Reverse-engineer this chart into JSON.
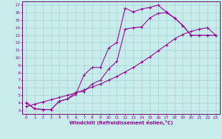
{
  "xlabel": "Windchill (Refroidissement éolien,°C)",
  "bg_color": "#c8ecec",
  "grid_color": "#aad4d4",
  "line_color": "#990099",
  "spine_color": "#660066",
  "xlim": [
    -0.5,
    23.5
  ],
  "ylim": [
    2.5,
    17.5
  ],
  "xticks": [
    0,
    1,
    2,
    3,
    4,
    5,
    6,
    7,
    8,
    9,
    10,
    11,
    12,
    13,
    14,
    15,
    16,
    17,
    18,
    19,
    20,
    21,
    22,
    23
  ],
  "yticks": [
    3,
    4,
    5,
    6,
    7,
    8,
    9,
    10,
    11,
    12,
    13,
    14,
    15,
    16,
    17
  ],
  "curve1_x": [
    0,
    1,
    2,
    3,
    4,
    5,
    6,
    7,
    8,
    9,
    10,
    11,
    12,
    13,
    14,
    15,
    16,
    17,
    18,
    19,
    20,
    21,
    22,
    23
  ],
  "curve1_y": [
    4.0,
    3.2,
    3.1,
    3.1,
    4.2,
    4.5,
    5.1,
    7.7,
    8.7,
    8.7,
    11.3,
    12.0,
    16.6,
    16.1,
    16.5,
    16.7,
    17.0,
    16.1,
    15.3,
    14.3,
    13.0,
    13.0,
    13.0,
    13.0
  ],
  "curve2_x": [
    0,
    1,
    2,
    3,
    4,
    5,
    6,
    7,
    8,
    9,
    10,
    11,
    12,
    13,
    14,
    15,
    16,
    17,
    18,
    19,
    20,
    21,
    22,
    23
  ],
  "curve2_y": [
    4.0,
    3.2,
    3.1,
    3.1,
    4.2,
    4.5,
    5.4,
    5.5,
    6.5,
    7.0,
    8.5,
    9.5,
    13.8,
    14.0,
    14.1,
    15.3,
    15.9,
    16.0,
    15.3,
    14.3,
    13.0,
    13.0,
    13.0,
    13.0
  ],
  "curve3_x": [
    0,
    1,
    2,
    3,
    4,
    5,
    6,
    7,
    8,
    9,
    10,
    11,
    12,
    13,
    14,
    15,
    16,
    17,
    18,
    19,
    20,
    21,
    22,
    23
  ],
  "curve3_y": [
    3.5,
    3.8,
    4.1,
    4.4,
    4.7,
    5.0,
    5.3,
    5.7,
    6.1,
    6.5,
    7.0,
    7.5,
    8.1,
    8.7,
    9.4,
    10.1,
    10.9,
    11.7,
    12.5,
    13.1,
    13.5,
    13.8,
    14.0,
    13.0
  ]
}
